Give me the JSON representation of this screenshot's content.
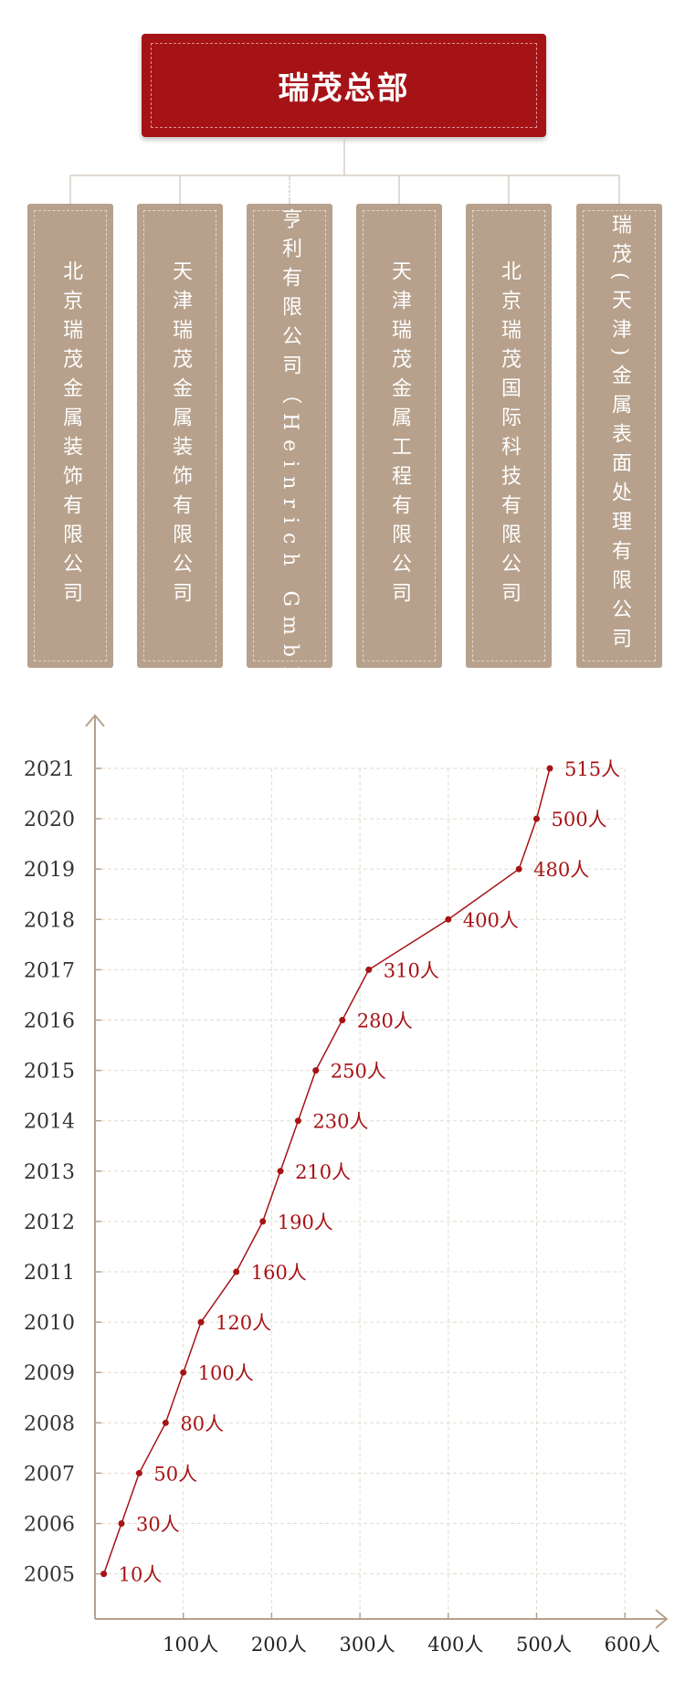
{
  "org": {
    "headquarters": "瑞茂总部",
    "subsidiaries": [
      {
        "name": "北京瑞茂金属装饰有限公司"
      },
      {
        "name": "天津瑞茂金属装饰有限公司"
      },
      {
        "name": "德国亨利有限公司（Heinrich GmbH）"
      },
      {
        "name": "天津瑞茂金属工程有限公司"
      },
      {
        "name": "北京瑞茂国际科技有限公司"
      },
      {
        "name": "瑞茂(天津)金属表面处理有限公司"
      }
    ]
  },
  "chart_data": {
    "type": "line",
    "orientation": "horizontal-values",
    "years": [
      "2005",
      "2006",
      "2007",
      "2008",
      "2009",
      "2010",
      "2011",
      "2012",
      "2013",
      "2014",
      "2015",
      "2016",
      "2017",
      "2018",
      "2019",
      "2020",
      "2021"
    ],
    "values": [
      10,
      30,
      50,
      80,
      100,
      120,
      160,
      190,
      210,
      230,
      250,
      280,
      310,
      400,
      480,
      500,
      515
    ],
    "point_labels": [
      "10人",
      "30人",
      "50人",
      "80人",
      "100人",
      "120人",
      "160人",
      "190人",
      "210人",
      "230人",
      "250人",
      "280人",
      "310人",
      "400人",
      "480人",
      "500人",
      "515人"
    ],
    "x_ticks": [
      100,
      200,
      300,
      400,
      500,
      600
    ],
    "x_tick_labels": [
      "100人",
      "200人",
      "300人",
      "400人",
      "500人",
      "600人"
    ],
    "xlim": [
      0,
      600
    ],
    "grid": true,
    "line_color": "#a61316",
    "axis_color": "#b7a18c",
    "grid_color": "#e3dbcf",
    "year_label_color": "#333333"
  }
}
